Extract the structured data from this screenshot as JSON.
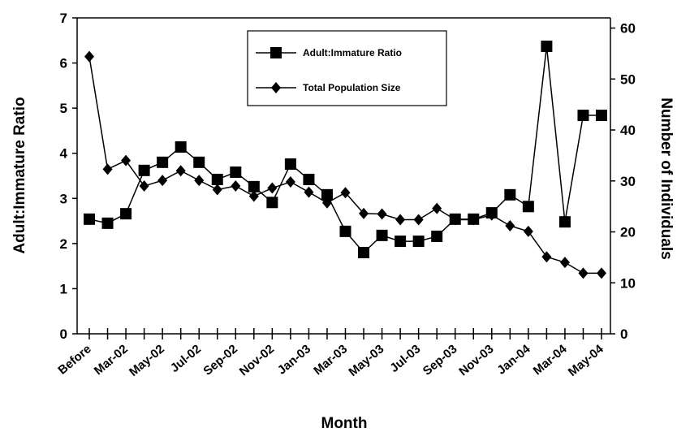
{
  "chart_data": {
    "type": "line",
    "x_label": "Month",
    "y_label": "Adult:Immature Ratio",
    "y2_label": "Number of Individuals",
    "categories": [
      "Before",
      null,
      "Mar-02",
      null,
      "May-02",
      null,
      "Jul-02",
      null,
      "Sep-02",
      null,
      "Nov-02",
      null,
      "Jan-03",
      null,
      "Mar-03",
      null,
      "May-03",
      null,
      "Jul-03",
      null,
      "Sep-03",
      null,
      "Nov-03",
      null,
      "Jan-04",
      null,
      "Mar-04",
      null,
      "May-04"
    ],
    "series": [
      {
        "name": "Adult:Immature Ratio",
        "color": "#000000",
        "marker": "square",
        "axis": "y",
        "values": [
          2.54,
          2.45,
          2.66,
          3.62,
          3.8,
          4.14,
          3.8,
          3.42,
          3.58,
          3.26,
          2.91,
          3.76,
          3.42,
          3.08,
          2.27,
          1.8,
          2.18,
          2.05,
          2.05,
          2.16,
          2.54,
          2.54,
          2.68,
          3.08,
          2.82,
          6.37,
          2.48,
          4.84,
          4.84
        ]
      },
      {
        "name": "Total Population Size",
        "color": "#000000",
        "marker": "diamond",
        "axis": "y2",
        "values": [
          54.4,
          32.3,
          34,
          29,
          30.1,
          32,
          30.1,
          28.3,
          29,
          27,
          28.6,
          29.8,
          27.8,
          25.7,
          27.7,
          23.6,
          23.5,
          22.4,
          22.4,
          24.6,
          22.4,
          22.4,
          23.3,
          21.2,
          20.1,
          15.1,
          14,
          11.9,
          11.9
        ]
      }
    ],
    "ylim": [
      0,
      7
    ],
    "yticks": [
      0,
      1,
      2,
      3,
      4,
      5,
      6,
      7
    ],
    "y2lim": [
      0,
      62
    ],
    "y2ticks": [
      0,
      10,
      20,
      30,
      40,
      50,
      60
    ],
    "legend": "upper center",
    "grid": false
  }
}
